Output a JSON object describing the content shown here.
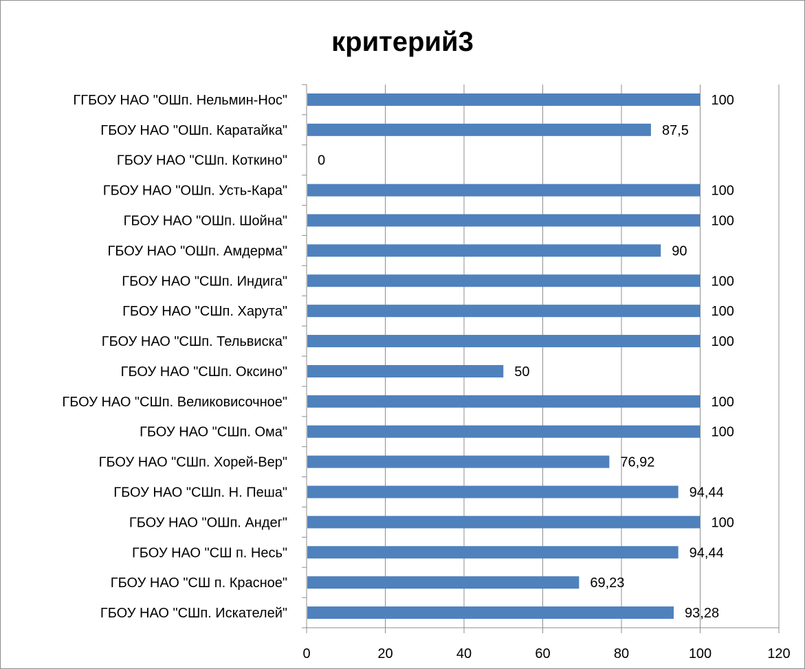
{
  "chart_data": {
    "type": "bar",
    "orientation": "horizontal",
    "title": "критерий3",
    "categories": [
      "ГГБОУ НАО \"ОШп. Нельмин-Нос\"",
      "ГБОУ НАО \"ОШп. Каратайка\"",
      "ГБОУ НАО \"СШп. Коткино\"",
      "ГБОУ НАО \"ОШп. Усть-Кара\"",
      "ГБОУ НАО \"ОШп. Шойна\"",
      "ГБОУ НАО \"ОШп. Амдерма\"",
      "ГБОУ НАО \"СШп. Индига\"",
      "ГБОУ НАО \"СШп. Харута\"",
      "ГБОУ НАО \"СШп. Тельвиска\"",
      "ГБОУ НАО \"СШп. Оксино\"",
      "ГБОУ НАО \"СШп. Великовисочное\"",
      "ГБОУ НАО \"СШп. Ома\"",
      "ГБОУ НАО \"СШп. Хорей-Вер\"",
      "ГБОУ НАО \"СШп. Н. Пеша\"",
      "ГБОУ НАО \"ОШп. Андег\"",
      "ГБОУ НАО \"СШ п. Несь\"",
      "ГБОУ НАО \"СШ п. Красное\"",
      "ГБОУ НАО \"СШп. Искателей\""
    ],
    "values": [
      100,
      87.5,
      0,
      100,
      100,
      90,
      100,
      100,
      100,
      50,
      100,
      100,
      76.92,
      94.44,
      100,
      94.44,
      69.23,
      93.28
    ],
    "data_labels": [
      "100",
      "87,5",
      "0",
      "100",
      "100",
      "90",
      "100",
      "100",
      "100",
      "50",
      "100",
      "100",
      "76,92",
      "94,44",
      "100",
      "94,44",
      "69,23",
      "93,28"
    ],
    "x_ticks": [
      "0",
      "20",
      "40",
      "60",
      "80",
      "100",
      "120"
    ],
    "xlim": [
      0,
      120
    ],
    "xlabel": "",
    "ylabel": "",
    "grid": "vertical",
    "legend": "none",
    "bar_color": "#4f81bd"
  }
}
